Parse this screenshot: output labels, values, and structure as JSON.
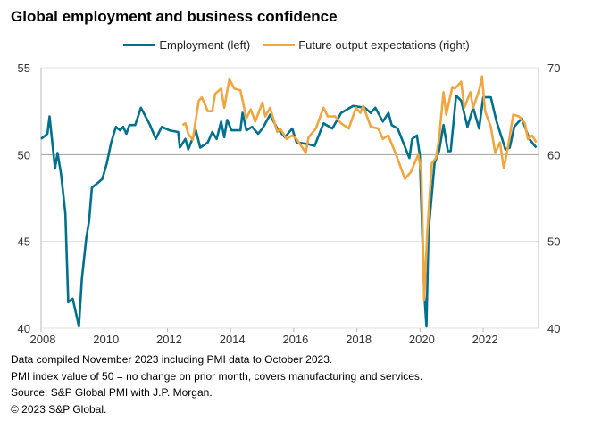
{
  "colors": {
    "employment": "#00708c",
    "output": "#f0a640"
  },
  "chart_data": {
    "type": "line",
    "title": "Global employment and business confidence",
    "x_ticks": [
      "2008",
      "2010",
      "2012",
      "2014",
      "2016",
      "2018",
      "2020",
      "2022"
    ],
    "xlim": [
      2008,
      2023.75
    ],
    "y_left": {
      "lim": [
        40,
        55
      ],
      "ticks": [
        "40",
        "45",
        "50",
        "55"
      ]
    },
    "y_right": {
      "lim": [
        40,
        70
      ],
      "ticks": [
        "40",
        "50",
        "60",
        "70"
      ]
    },
    "grid": true,
    "legend_position": "top-center",
    "series": [
      {
        "name": "Employment (left)",
        "axis": "left",
        "points": [
          [
            2008.0,
            50.9
          ],
          [
            2008.2,
            51.2
          ],
          [
            2008.27,
            52.2
          ],
          [
            2008.44,
            49.2
          ],
          [
            2008.52,
            50.1
          ],
          [
            2008.63,
            48.9
          ],
          [
            2008.77,
            46.6
          ],
          [
            2008.86,
            41.5
          ],
          [
            2009.0,
            41.7
          ],
          [
            2009.2,
            40.1
          ],
          [
            2009.29,
            42.8
          ],
          [
            2009.43,
            45.2
          ],
          [
            2009.52,
            46.2
          ],
          [
            2009.61,
            48.1
          ],
          [
            2009.75,
            48.3
          ],
          [
            2009.94,
            48.6
          ],
          [
            2010.08,
            49.5
          ],
          [
            2010.22,
            50.7
          ],
          [
            2010.37,
            51.6
          ],
          [
            2010.5,
            51.4
          ],
          [
            2010.6,
            51.6
          ],
          [
            2010.7,
            51.2
          ],
          [
            2010.8,
            51.7
          ],
          [
            2010.98,
            51.7
          ],
          [
            2011.16,
            52.7
          ],
          [
            2011.45,
            51.7
          ],
          [
            2011.63,
            50.9
          ],
          [
            2011.82,
            51.6
          ],
          [
            2012.06,
            51.4
          ],
          [
            2012.34,
            51.3
          ],
          [
            2012.39,
            50.4
          ],
          [
            2012.57,
            50.9
          ],
          [
            2012.66,
            50.3
          ],
          [
            2012.9,
            51.4
          ],
          [
            2013.04,
            50.4
          ],
          [
            2013.28,
            50.7
          ],
          [
            2013.42,
            51.3
          ],
          [
            2013.56,
            50.9
          ],
          [
            2013.7,
            51.9
          ],
          [
            2013.8,
            51.0
          ],
          [
            2013.89,
            52.0
          ],
          [
            2014.03,
            51.4
          ],
          [
            2014.31,
            51.4
          ],
          [
            2014.38,
            52.4
          ],
          [
            2014.5,
            51.4
          ],
          [
            2014.68,
            51.6
          ],
          [
            2014.87,
            51.2
          ],
          [
            2015.01,
            51.5
          ],
          [
            2015.25,
            52.3
          ],
          [
            2015.48,
            51.5
          ],
          [
            2015.72,
            51.0
          ],
          [
            2015.95,
            51.5
          ],
          [
            2016.09,
            50.7
          ],
          [
            2016.47,
            50.6
          ],
          [
            2016.66,
            50.5
          ],
          [
            2016.94,
            51.8
          ],
          [
            2017.22,
            51.5
          ],
          [
            2017.5,
            52.4
          ],
          [
            2017.88,
            52.8
          ],
          [
            2018.25,
            52.7
          ],
          [
            2018.44,
            52.4
          ],
          [
            2018.58,
            52.7
          ],
          [
            2018.82,
            51.9
          ],
          [
            2019.0,
            52.4
          ],
          [
            2019.1,
            51.7
          ],
          [
            2019.29,
            51.5
          ],
          [
            2019.66,
            49.8
          ],
          [
            2019.75,
            50.9
          ],
          [
            2019.9,
            51.1
          ],
          [
            2019.99,
            50.0
          ],
          [
            2020.13,
            42.1
          ],
          [
            2020.2,
            40.1
          ],
          [
            2020.27,
            45.6
          ],
          [
            2020.46,
            49.5
          ],
          [
            2020.6,
            50.2
          ],
          [
            2020.74,
            51.7
          ],
          [
            2020.88,
            50.2
          ],
          [
            2020.97,
            50.2
          ],
          [
            2021.14,
            53.4
          ],
          [
            2021.3,
            53.1
          ],
          [
            2021.5,
            51.6
          ],
          [
            2021.68,
            52.7
          ],
          [
            2021.87,
            51.5
          ],
          [
            2022.0,
            53.3
          ],
          [
            2022.24,
            53.3
          ],
          [
            2022.42,
            51.9
          ],
          [
            2022.6,
            50.9
          ],
          [
            2022.7,
            50.3
          ],
          [
            2022.84,
            50.4
          ],
          [
            2022.98,
            51.6
          ],
          [
            2023.22,
            52.1
          ],
          [
            2023.46,
            50.9
          ],
          [
            2023.68,
            50.4
          ]
        ]
      },
      {
        "name": "Future output expectations (right)",
        "axis": "right",
        "points": [
          [
            2012.48,
            63.4
          ],
          [
            2012.57,
            63.6
          ],
          [
            2012.66,
            62.4
          ],
          [
            2012.8,
            61.7
          ],
          [
            2012.99,
            66.2
          ],
          [
            2013.09,
            66.6
          ],
          [
            2013.28,
            65.0
          ],
          [
            2013.42,
            65.0
          ],
          [
            2013.51,
            67.0
          ],
          [
            2013.7,
            67.6
          ],
          [
            2013.8,
            65.4
          ],
          [
            2013.96,
            68.7
          ],
          [
            2014.12,
            67.6
          ],
          [
            2014.31,
            67.4
          ],
          [
            2014.5,
            64.2
          ],
          [
            2014.64,
            65.2
          ],
          [
            2014.78,
            63.8
          ],
          [
            2015.01,
            66.0
          ],
          [
            2015.1,
            64.4
          ],
          [
            2015.25,
            65.4
          ],
          [
            2015.48,
            62.6
          ],
          [
            2015.57,
            63.0
          ],
          [
            2015.77,
            61.8
          ],
          [
            2015.95,
            62.2
          ],
          [
            2016.09,
            61.8
          ],
          [
            2016.38,
            60.2
          ],
          [
            2016.47,
            62.0
          ],
          [
            2016.7,
            63.0
          ],
          [
            2016.94,
            65.4
          ],
          [
            2017.08,
            64.4
          ],
          [
            2017.31,
            64.4
          ],
          [
            2017.5,
            63.6
          ],
          [
            2017.74,
            63.0
          ],
          [
            2017.97,
            65.4
          ],
          [
            2018.11,
            64.8
          ],
          [
            2018.2,
            65.6
          ],
          [
            2018.44,
            63.2
          ],
          [
            2018.68,
            63.0
          ],
          [
            2018.82,
            61.8
          ],
          [
            2018.99,
            62.2
          ],
          [
            2019.24,
            60.0
          ],
          [
            2019.52,
            57.2
          ],
          [
            2019.71,
            58.0
          ],
          [
            2019.94,
            60.0
          ],
          [
            2020.04,
            58.0
          ],
          [
            2020.13,
            43.2
          ],
          [
            2020.23,
            51.2
          ],
          [
            2020.37,
            59.0
          ],
          [
            2020.5,
            59.6
          ],
          [
            2020.6,
            61.8
          ],
          [
            2020.74,
            67.2
          ],
          [
            2020.83,
            64.6
          ],
          [
            2021.02,
            67.8
          ],
          [
            2021.1,
            67.6
          ],
          [
            2021.3,
            68.4
          ],
          [
            2021.4,
            65.4
          ],
          [
            2021.59,
            67.2
          ],
          [
            2021.68,
            65.4
          ],
          [
            2021.87,
            67.4
          ],
          [
            2021.96,
            69.0
          ],
          [
            2022.06,
            65.0
          ],
          [
            2022.24,
            63.2
          ],
          [
            2022.38,
            60.2
          ],
          [
            2022.53,
            61.4
          ],
          [
            2022.65,
            58.4
          ],
          [
            2022.76,
            60.4
          ],
          [
            2022.95,
            64.6
          ],
          [
            2023.13,
            64.4
          ],
          [
            2023.32,
            63.6
          ],
          [
            2023.41,
            61.8
          ],
          [
            2023.55,
            62.2
          ],
          [
            2023.68,
            61.4
          ]
        ]
      }
    ]
  },
  "legend": {
    "employment": "Employment (left)",
    "output": "Future output expectations (right)"
  },
  "footer": [
    "Data compiled November 2023 including PMI data to October 2023.",
    "PMI index value of 50 = no change on prior month, covers manufacturing and services.",
    "Source: S&P Global PMI with J.P. Morgan.",
    "© 2023 S&P Global."
  ]
}
